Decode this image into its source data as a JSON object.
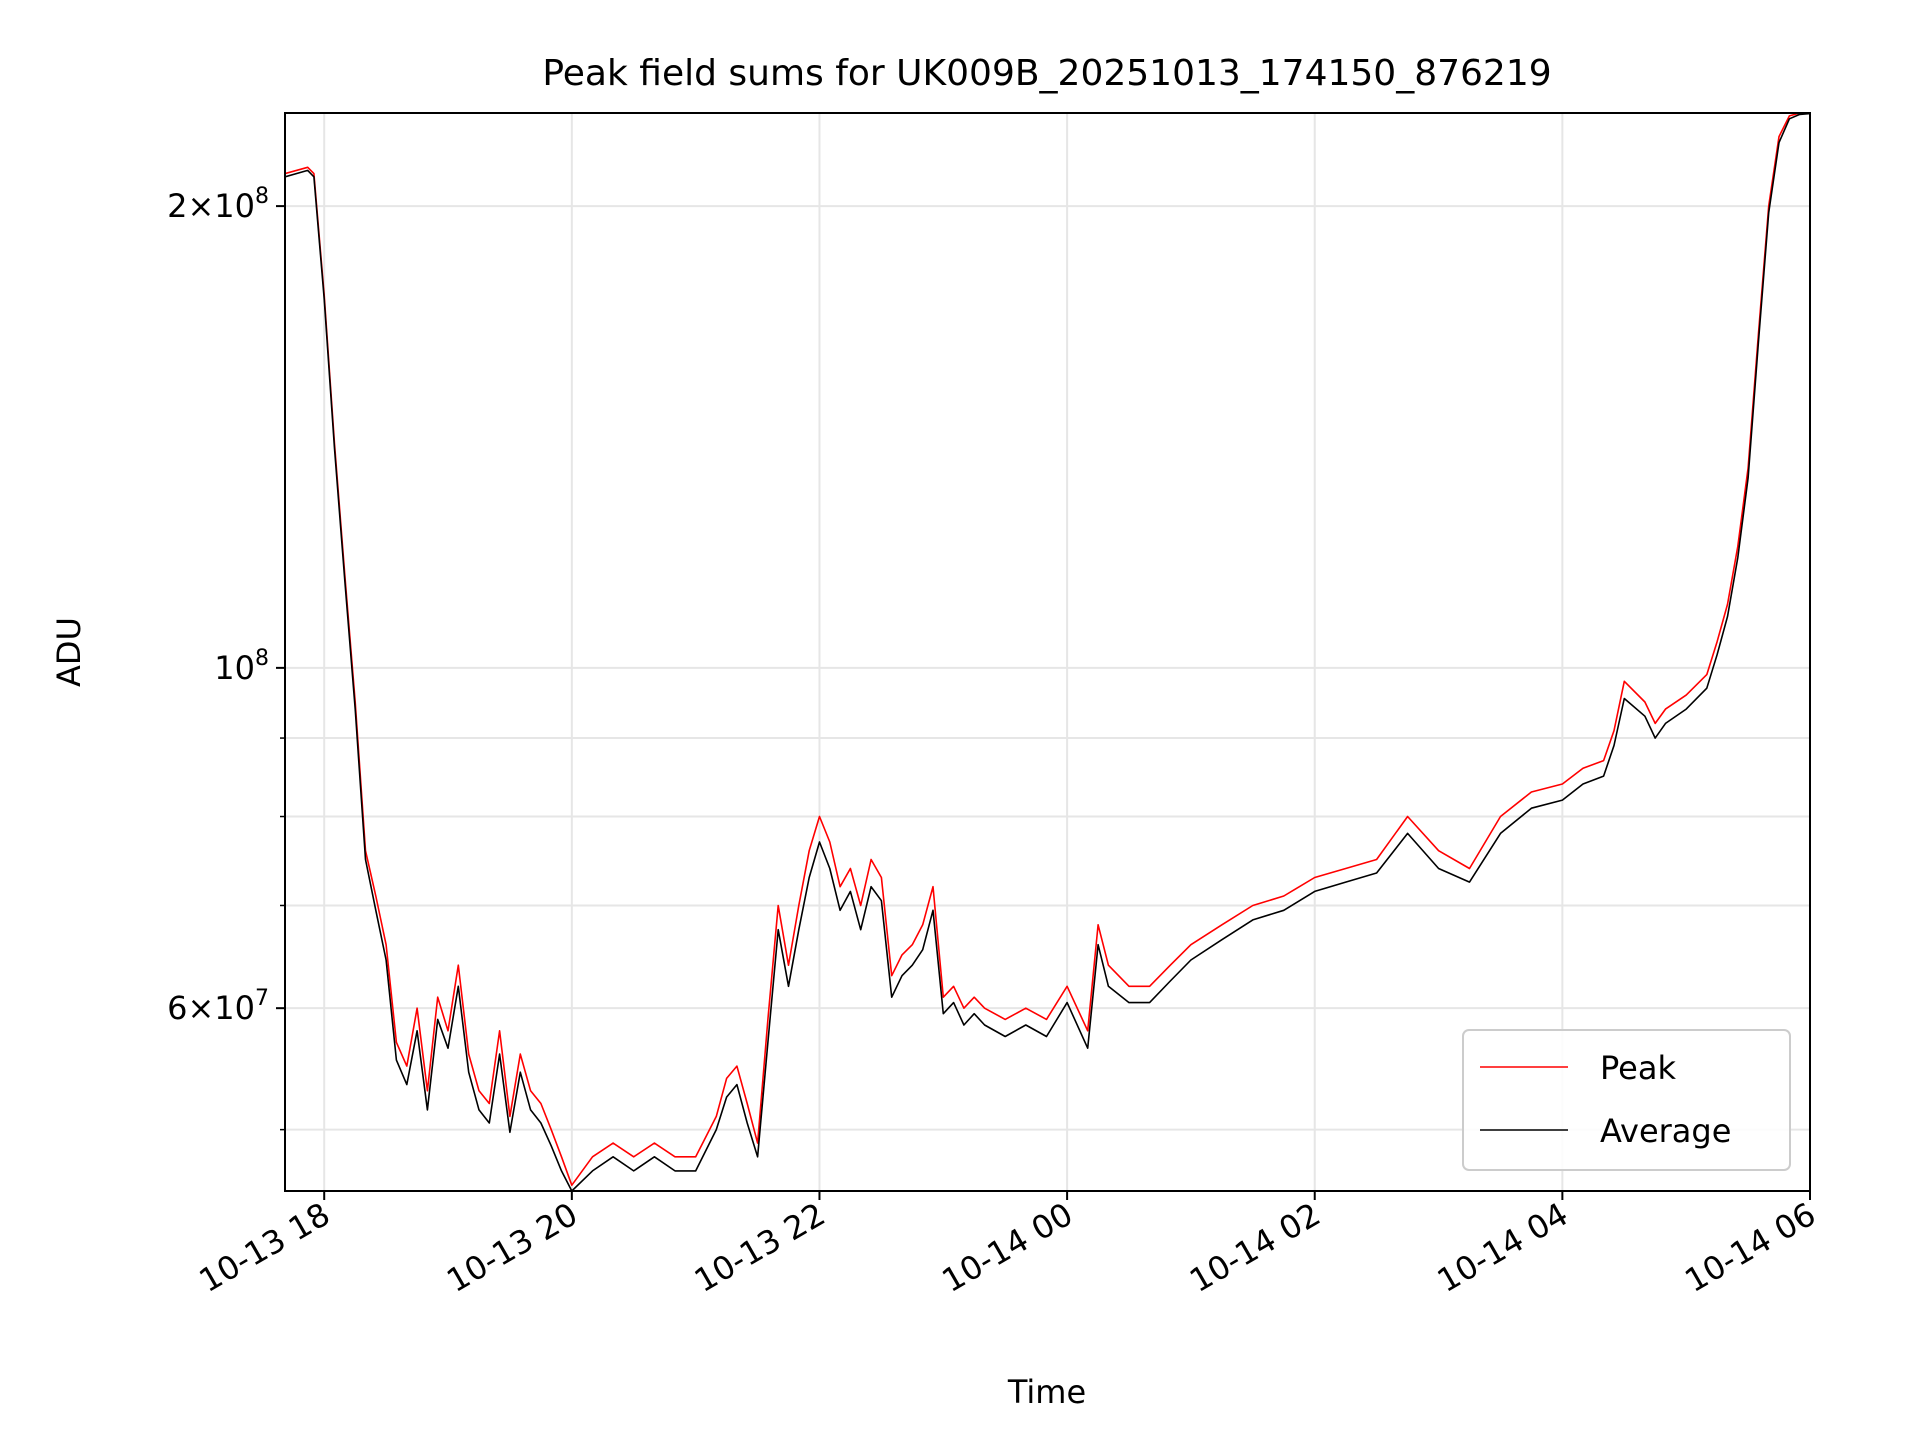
{
  "chart_data": {
    "type": "line",
    "title": "Peak field sums for UK009B_20251013_174150_876219",
    "xlabel": "Time",
    "ylabel": "ADU",
    "xlim": [
      "2025-10-13 17:41",
      "2025-10-14 06:00"
    ],
    "ylim": [
      45600000,
      230000000
    ],
    "yscale": "log",
    "grid": true,
    "legend_position": "lower-right",
    "x_ticks": [
      {
        "label": "10-13 18",
        "value": "2025-10-13 18:00"
      },
      {
        "label": "10-13 20",
        "value": "2025-10-13 20:00"
      },
      {
        "label": "10-13 22",
        "value": "2025-10-13 22:00"
      },
      {
        "label": "10-14 00",
        "value": "2025-10-14 00:00"
      },
      {
        "label": "10-14 02",
        "value": "2025-10-14 02:00"
      },
      {
        "label": "10-14 04",
        "value": "2025-10-14 04:00"
      },
      {
        "label": "10-14 06",
        "value": "2025-10-14 06:00"
      }
    ],
    "y_major_ticks": [
      {
        "label_base": "2×10",
        "label_exp": "8",
        "value": 200000000
      },
      {
        "label_base": "10",
        "label_exp": "8",
        "value": 100000000
      },
      {
        "label_base": "6×10",
        "label_exp": "7",
        "value": 60000000
      }
    ],
    "y_minor_ticks": [
      50000000,
      70000000,
      80000000,
      90000000
    ],
    "series": [
      {
        "name": "Peak",
        "color": "#ff0000",
        "x": [
          "2025-10-13 17:41",
          "2025-10-13 17:52",
          "2025-10-13 17:55",
          "2025-10-13 18:00",
          "2025-10-13 18:05",
          "2025-10-13 18:10",
          "2025-10-13 18:15",
          "2025-10-13 18:20",
          "2025-10-13 18:25",
          "2025-10-13 18:30",
          "2025-10-13 18:35",
          "2025-10-13 18:40",
          "2025-10-13 18:45",
          "2025-10-13 18:50",
          "2025-10-13 18:55",
          "2025-10-13 19:00",
          "2025-10-13 19:05",
          "2025-10-13 19:10",
          "2025-10-13 19:15",
          "2025-10-13 19:20",
          "2025-10-13 19:25",
          "2025-10-13 19:30",
          "2025-10-13 19:35",
          "2025-10-13 19:40",
          "2025-10-13 19:45",
          "2025-10-13 19:50",
          "2025-10-13 19:55",
          "2025-10-13 20:00",
          "2025-10-13 20:10",
          "2025-10-13 20:20",
          "2025-10-13 20:30",
          "2025-10-13 20:40",
          "2025-10-13 20:50",
          "2025-10-13 21:00",
          "2025-10-13 21:10",
          "2025-10-13 21:15",
          "2025-10-13 21:20",
          "2025-10-13 21:25",
          "2025-10-13 21:30",
          "2025-10-13 21:35",
          "2025-10-13 21:40",
          "2025-10-13 21:45",
          "2025-10-13 21:50",
          "2025-10-13 21:55",
          "2025-10-13 22:00",
          "2025-10-13 22:05",
          "2025-10-13 22:10",
          "2025-10-13 22:15",
          "2025-10-13 22:20",
          "2025-10-13 22:25",
          "2025-10-13 22:30",
          "2025-10-13 22:35",
          "2025-10-13 22:40",
          "2025-10-13 22:45",
          "2025-10-13 22:50",
          "2025-10-13 22:55",
          "2025-10-13 23:00",
          "2025-10-13 23:05",
          "2025-10-13 23:10",
          "2025-10-13 23:15",
          "2025-10-13 23:20",
          "2025-10-13 23:30",
          "2025-10-13 23:40",
          "2025-10-13 23:50",
          "2025-10-14 00:00",
          "2025-10-14 00:10",
          "2025-10-14 00:15",
          "2025-10-14 00:20",
          "2025-10-14 00:30",
          "2025-10-14 00:40",
          "2025-10-14 00:50",
          "2025-10-14 01:00",
          "2025-10-14 01:15",
          "2025-10-14 01:30",
          "2025-10-14 01:45",
          "2025-10-14 02:00",
          "2025-10-14 02:15",
          "2025-10-14 02:30",
          "2025-10-14 02:45",
          "2025-10-14 03:00",
          "2025-10-14 03:15",
          "2025-10-14 03:30",
          "2025-10-14 03:45",
          "2025-10-14 04:00",
          "2025-10-14 04:10",
          "2025-10-14 04:20",
          "2025-10-14 04:25",
          "2025-10-14 04:30",
          "2025-10-14 04:40",
          "2025-10-14 04:45",
          "2025-10-14 04:50",
          "2025-10-14 05:00",
          "2025-10-14 05:10",
          "2025-10-14 05:15",
          "2025-10-14 05:20",
          "2025-10-14 05:25",
          "2025-10-14 05:30",
          "2025-10-14 05:35",
          "2025-10-14 05:40",
          "2025-10-14 05:45",
          "2025-10-14 05:50",
          "2025-10-14 05:55",
          "2025-10-14 06:00"
        ],
        "values": [
          210000000,
          212000000,
          210000000,
          175000000,
          140000000,
          115000000,
          95000000,
          76000000,
          71000000,
          66000000,
          57000000,
          55000000,
          60000000,
          53000000,
          61000000,
          58000000,
          64000000,
          56000000,
          53000000,
          52000000,
          58000000,
          51000000,
          56000000,
          53000000,
          52000000,
          50000000,
          48000000,
          46000000,
          48000000,
          49000000,
          48000000,
          49000000,
          48000000,
          48000000,
          51000000,
          54000000,
          55000000,
          52000000,
          49000000,
          59000000,
          70000000,
          64000000,
          70000000,
          76000000,
          80000000,
          77000000,
          72000000,
          74000000,
          70000000,
          75000000,
          73000000,
          63000000,
          65000000,
          66000000,
          68000000,
          72000000,
          61000000,
          62000000,
          60000000,
          61000000,
          60000000,
          59000000,
          60000000,
          59000000,
          62000000,
          58000000,
          68000000,
          64000000,
          62000000,
          62000000,
          64000000,
          66000000,
          68000000,
          70000000,
          71000000,
          73000000,
          74000000,
          75000000,
          80000000,
          76000000,
          74000000,
          80000000,
          83000000,
          84000000,
          86000000,
          87000000,
          91000000,
          98000000,
          95000000,
          92000000,
          94000000,
          96000000,
          99000000,
          104000000,
          110000000,
          120000000,
          135000000,
          165000000,
          200000000,
          222000000,
          229000000,
          230000000,
          230000000
        ]
      },
      {
        "name": "Average",
        "color": "#000000",
        "x": [
          "2025-10-13 17:41",
          "2025-10-13 17:52",
          "2025-10-13 17:55",
          "2025-10-13 18:00",
          "2025-10-13 18:05",
          "2025-10-13 18:10",
          "2025-10-13 18:15",
          "2025-10-13 18:20",
          "2025-10-13 18:25",
          "2025-10-13 18:30",
          "2025-10-13 18:35",
          "2025-10-13 18:40",
          "2025-10-13 18:45",
          "2025-10-13 18:50",
          "2025-10-13 18:55",
          "2025-10-13 19:00",
          "2025-10-13 19:05",
          "2025-10-13 19:10",
          "2025-10-13 19:15",
          "2025-10-13 19:20",
          "2025-10-13 19:25",
          "2025-10-13 19:30",
          "2025-10-13 19:35",
          "2025-10-13 19:40",
          "2025-10-13 19:45",
          "2025-10-13 19:50",
          "2025-10-13 19:55",
          "2025-10-13 20:00",
          "2025-10-13 20:10",
          "2025-10-13 20:20",
          "2025-10-13 20:30",
          "2025-10-13 20:40",
          "2025-10-13 20:50",
          "2025-10-13 21:00",
          "2025-10-13 21:10",
          "2025-10-13 21:15",
          "2025-10-13 21:20",
          "2025-10-13 21:25",
          "2025-10-13 21:30",
          "2025-10-13 21:35",
          "2025-10-13 21:40",
          "2025-10-13 21:45",
          "2025-10-13 21:50",
          "2025-10-13 21:55",
          "2025-10-13 22:00",
          "2025-10-13 22:05",
          "2025-10-13 22:10",
          "2025-10-13 22:15",
          "2025-10-13 22:20",
          "2025-10-13 22:25",
          "2025-10-13 22:30",
          "2025-10-13 22:35",
          "2025-10-13 22:40",
          "2025-10-13 22:45",
          "2025-10-13 22:50",
          "2025-10-13 22:55",
          "2025-10-13 23:00",
          "2025-10-13 23:05",
          "2025-10-13 23:10",
          "2025-10-13 23:15",
          "2025-10-13 23:20",
          "2025-10-13 23:30",
          "2025-10-13 23:40",
          "2025-10-13 23:50",
          "2025-10-14 00:00",
          "2025-10-14 00:10",
          "2025-10-14 00:15",
          "2025-10-14 00:20",
          "2025-10-14 00:30",
          "2025-10-14 00:40",
          "2025-10-14 00:50",
          "2025-10-14 01:00",
          "2025-10-14 01:15",
          "2025-10-14 01:30",
          "2025-10-14 01:45",
          "2025-10-14 02:00",
          "2025-10-14 02:15",
          "2025-10-14 02:30",
          "2025-10-14 02:45",
          "2025-10-14 03:00",
          "2025-10-14 03:15",
          "2025-10-14 03:30",
          "2025-10-14 03:45",
          "2025-10-14 04:00",
          "2025-10-14 04:10",
          "2025-10-14 04:20",
          "2025-10-14 04:25",
          "2025-10-14 04:30",
          "2025-10-14 04:40",
          "2025-10-14 04:45",
          "2025-10-14 04:50",
          "2025-10-14 05:00",
          "2025-10-14 05:10",
          "2025-10-14 05:15",
          "2025-10-14 05:20",
          "2025-10-14 05:25",
          "2025-10-14 05:30",
          "2025-10-14 05:35",
          "2025-10-14 05:40",
          "2025-10-14 05:45",
          "2025-10-14 05:50",
          "2025-10-14 05:55",
          "2025-10-14 06:00"
        ],
        "values": [
          209000000,
          211000000,
          209000000,
          174000000,
          139000000,
          114000000,
          94000000,
          75000000,
          69500000,
          64500000,
          55500000,
          53500000,
          58000000,
          51500000,
          59000000,
          56500000,
          62000000,
          54500000,
          51500000,
          50500000,
          56000000,
          49800000,
          54500000,
          51500000,
          50500000,
          48800000,
          47000000,
          45600000,
          47000000,
          48000000,
          47000000,
          48000000,
          47000000,
          47000000,
          50000000,
          52500000,
          53500000,
          50500000,
          48000000,
          57000000,
          67500000,
          62000000,
          67500000,
          73000000,
          77000000,
          74000000,
          69500000,
          71500000,
          67500000,
          72000000,
          70500000,
          61000000,
          63000000,
          64000000,
          65500000,
          69500000,
          59500000,
          60500000,
          58500000,
          59500000,
          58500000,
          57500000,
          58500000,
          57500000,
          60500000,
          56500000,
          66000000,
          62000000,
          60500000,
          60500000,
          62500000,
          64500000,
          66500000,
          68500000,
          69500000,
          71500000,
          72500000,
          73500000,
          78000000,
          74000000,
          72500000,
          78000000,
          81000000,
          82000000,
          84000000,
          85000000,
          89000000,
          95500000,
          93000000,
          90000000,
          92000000,
          94000000,
          97000000,
          102000000,
          108000000,
          118000000,
          133000000,
          163000000,
          198000000,
          220000000,
          228000000,
          229500000,
          229800000
        ]
      }
    ]
  }
}
